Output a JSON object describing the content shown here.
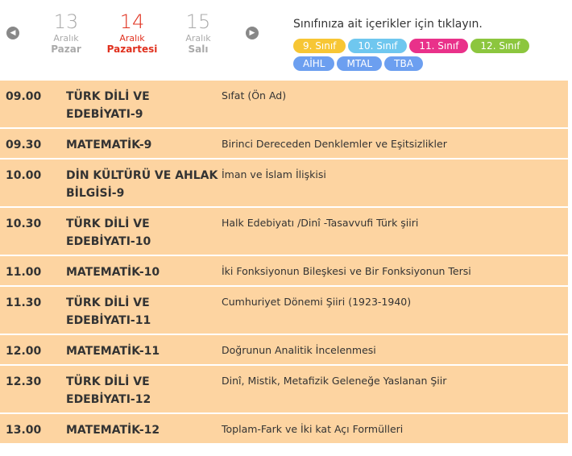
{
  "header": {
    "days": [
      {
        "day": "13",
        "month": "Aralık",
        "weekday": "Pazar"
      },
      {
        "day": "14",
        "month": "Aralık",
        "weekday": "Pazartesi"
      },
      {
        "day": "15",
        "month": "Aralık",
        "weekday": "Salı"
      }
    ],
    "instruction": "Sınıfınıza ait içerikler için tıklayın.",
    "classes": [
      "9. Sınıf",
      "10. Sınıf",
      "11. Sınıf",
      "12. Sınıf",
      "AİHL",
      "MTAL",
      "TBA"
    ]
  },
  "table": {
    "rows": [
      [
        "09.00",
        "TÜRK DİLİ VE EDEBİYATI-9",
        "Sıfat (Ön Ad)"
      ],
      [
        "09.30",
        "MATEMATİK-9",
        "Birinci Dereceden Denklemler ve Eşitsizlikler"
      ],
      [
        "10.00",
        "DİN KÜLTÜRÜ VE AHLAK BİLGİSİ-9",
        "İman ve İslam İlişkisi"
      ],
      [
        "10.30",
        "TÜRK DİLİ VE EDEBİYATI-10",
        "Halk Edebiyatı /Dinî -Tasavvufi Türk şiiri"
      ],
      [
        "11.00",
        "MATEMATİK-10",
        "İki Fonksiyonun Bileşkesi ve Bir Fonksiyonun Tersi"
      ],
      [
        "11.30",
        "TÜRK DİLİ VE EDEBİYATI-11",
        "Cumhuriyet Dönemi Şiiri (1923-1940)"
      ],
      [
        "12.00",
        "MATEMATİK-11",
        "Doğrunun Analitik İncelenmesi"
      ],
      [
        "12.30",
        "TÜRK DİLİ VE EDEBİYATI-12",
        "Dinî, Mistik, Metafizik Geleneğe Yaslanan Şiir"
      ],
      [
        "13.00",
        "MATEMATİK-12",
        "Toplam-Fark ve İki kat Açı Formülleri"
      ]
    ]
  }
}
